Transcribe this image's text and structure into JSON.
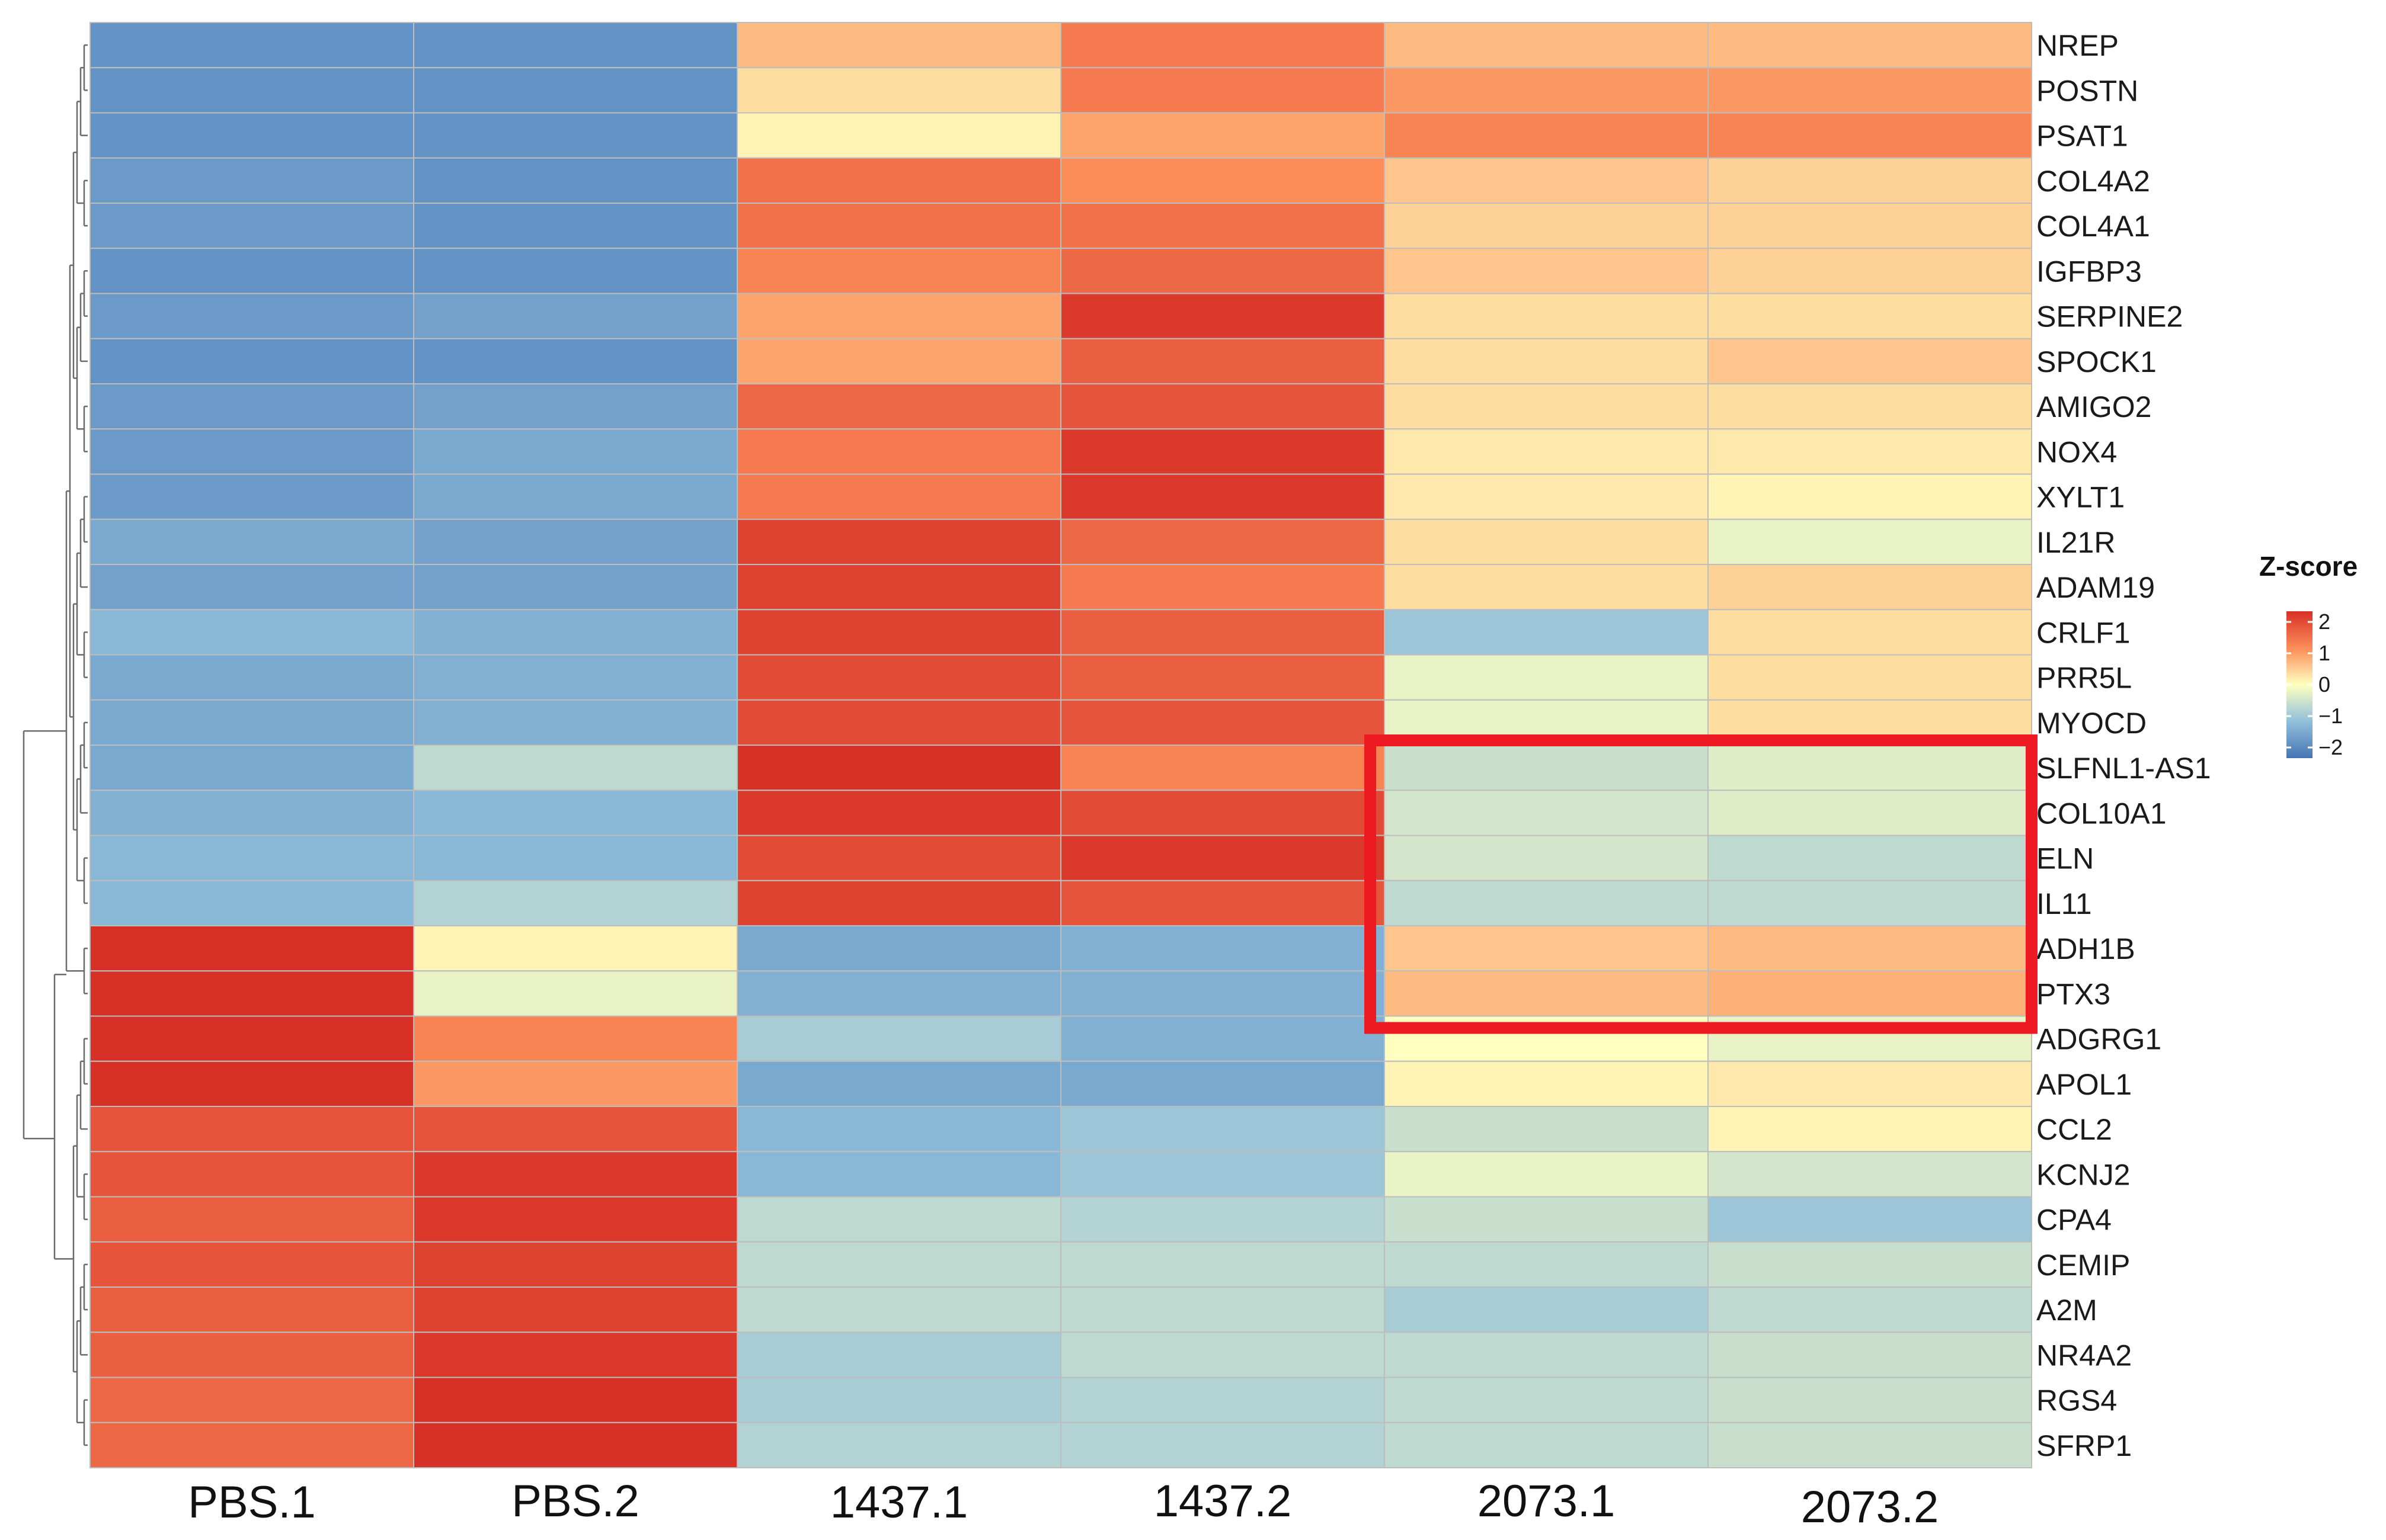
{
  "chart_data": {
    "type": "heatmap",
    "columns": [
      "PBS.1",
      "PBS.2",
      "1437.1",
      "1437.2",
      "2073.1",
      "2073.2"
    ],
    "rows": [
      "NREP",
      "POSTN",
      "PSAT1",
      "COL4A2",
      "COL4A1",
      "IGFBP3",
      "SERPINE2",
      "SPOCK1",
      "AMIGO2",
      "NOX4",
      "XYLT1",
      "IL21R",
      "ADAM19",
      "CRLF1",
      "PRR5L",
      "MYOCD",
      "SLFNL1-AS1",
      "COL10A1",
      "ELN",
      "IL11",
      "ADH1B",
      "PTX3",
      "ADGRG1",
      "APOL1",
      "CCL2",
      "KCNJ2",
      "CPA4",
      "CEMIP",
      "A2M",
      "NR4A2",
      "RGS4",
      "SFRP1"
    ],
    "values": [
      [
        -1.6,
        -1.6,
        0.6,
        1.2,
        0.6,
        0.6
      ],
      [
        -1.6,
        -1.6,
        0.3,
        1.2,
        0.9,
        0.9
      ],
      [
        -1.6,
        -1.6,
        0.1,
        0.8,
        1.1,
        1.1
      ],
      [
        -1.5,
        -1.6,
        1.3,
        1.0,
        0.5,
        0.4
      ],
      [
        -1.5,
        -1.6,
        1.3,
        1.3,
        0.4,
        0.4
      ],
      [
        -1.6,
        -1.6,
        1.1,
        1.4,
        0.5,
        0.4
      ],
      [
        -1.5,
        -1.4,
        0.8,
        1.9,
        0.3,
        0.3
      ],
      [
        -1.6,
        -1.6,
        0.8,
        1.5,
        0.3,
        0.5
      ],
      [
        -1.5,
        -1.4,
        1.4,
        1.6,
        0.3,
        0.3
      ],
      [
        -1.5,
        -1.3,
        1.2,
        1.9,
        0.2,
        0.2
      ],
      [
        -1.5,
        -1.3,
        1.2,
        1.9,
        0.2,
        0.1
      ],
      [
        -1.3,
        -1.4,
        1.8,
        1.4,
        0.3,
        -0.2
      ],
      [
        -1.4,
        -1.4,
        1.8,
        1.2,
        0.3,
        0.4
      ],
      [
        -1.1,
        -1.2,
        1.8,
        1.5,
        -0.9,
        0.3
      ],
      [
        -1.3,
        -1.2,
        1.7,
        1.5,
        -0.2,
        0.3
      ],
      [
        -1.3,
        -1.2,
        1.7,
        1.6,
        -0.2,
        0.3
      ],
      [
        -1.3,
        -0.6,
        2.1,
        1.1,
        -0.5,
        -0.3
      ],
      [
        -1.2,
        -1.1,
        1.9,
        1.7,
        -0.4,
        -0.3
      ],
      [
        -1.1,
        -1.1,
        1.7,
        1.9,
        -0.4,
        -0.6
      ],
      [
        -1.1,
        -0.7,
        1.8,
        1.6,
        -0.6,
        -0.6
      ],
      [
        2.2,
        0.1,
        -1.3,
        -1.2,
        0.5,
        0.6
      ],
      [
        2.2,
        -0.2,
        -1.2,
        -1.2,
        0.6,
        0.7
      ],
      [
        2.0,
        1.1,
        -0.8,
        -1.2,
        0.0,
        -0.2
      ],
      [
        2.0,
        0.9,
        -1.3,
        -1.3,
        0.1,
        0.2
      ],
      [
        1.6,
        1.6,
        -1.1,
        -0.9,
        -0.5,
        0.1
      ],
      [
        1.6,
        1.9,
        -1.1,
        -0.9,
        -0.2,
        -0.4
      ],
      [
        1.5,
        1.9,
        -0.6,
        -0.7,
        -0.5,
        -0.9
      ],
      [
        1.6,
        1.8,
        -0.6,
        -0.6,
        -0.6,
        -0.5
      ],
      [
        1.5,
        1.8,
        -0.6,
        -0.6,
        -0.8,
        -0.6
      ],
      [
        1.5,
        1.9,
        -0.8,
        -0.6,
        -0.6,
        -0.5
      ],
      [
        1.4,
        2.0,
        -0.8,
        -0.7,
        -0.6,
        -0.5
      ],
      [
        1.4,
        2.0,
        -0.7,
        -0.7,
        -0.6,
        -0.5
      ]
    ],
    "color_scale": {
      "stops": [
        {
          "value": -2,
          "color": "#4575b4"
        },
        {
          "value": -1,
          "color": "#91bfdb"
        },
        {
          "value": 0,
          "color": "#ffffbf"
        },
        {
          "value": 1,
          "color": "#fc8d59"
        },
        {
          "value": 2,
          "color": "#d73027"
        }
      ],
      "grid_color": "#bdbdbd"
    },
    "legend": {
      "title": "Z-score",
      "ticks": [
        "2",
        "1",
        "0",
        "−1",
        "−2"
      ],
      "placement": "right"
    },
    "highlight": {
      "color": "#ee1a23",
      "rows": [
        "SLFNL1-AS1",
        "COL10A1",
        "ELN",
        "IL11",
        "ADH1B",
        "PTX3"
      ],
      "columns": [
        "2073.1",
        "2073.2"
      ]
    },
    "dendrogram": {
      "side": "left",
      "clusters": [
        [
          "NREP",
          "POSTN",
          "PSAT1",
          "COL4A2",
          "COL4A1",
          "IGFBP3",
          "SERPINE2",
          "SPOCK1",
          "AMIGO2",
          "NOX4",
          "XYLT1",
          "IL21R",
          "ADAM19",
          "CRLF1",
          "PRR5L",
          "MYOCD",
          "SLFNL1-AS1",
          "COL10A1",
          "ELN",
          "IL11"
        ],
        [
          "ADH1B",
          "PTX3"
        ],
        [
          "ADGRG1",
          "APOL1",
          "CCL2",
          "KCNJ2",
          "CPA4",
          "CEMIP",
          "A2M",
          "NR4A2",
          "RGS4",
          "SFRP1"
        ]
      ]
    }
  }
}
